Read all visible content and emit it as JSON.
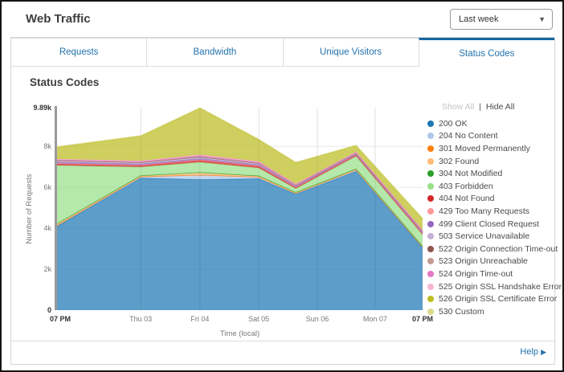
{
  "header": {
    "title": "Web Traffic",
    "range_dropdown": {
      "value": "Last week",
      "caret": "▼"
    }
  },
  "tabs": [
    {
      "label": "Requests",
      "active": false
    },
    {
      "label": "Bandwidth",
      "active": false
    },
    {
      "label": "Unique Visitors",
      "active": false
    },
    {
      "label": "Status Codes",
      "active": true
    }
  ],
  "panel": {
    "title": "Status Codes"
  },
  "legend": {
    "show_all_label": "Show All",
    "separator": "|",
    "hide_all_label": "Hide All"
  },
  "footer": {
    "help_label": "Help",
    "help_arrow": "▶"
  },
  "colors": {
    "accent_blue": "#17689f",
    "tab_text": "#2272ae",
    "axis_gray": "#999999"
  },
  "chart_data": {
    "type": "area",
    "stacked": true,
    "title": "Status Codes",
    "xlabel": "Time (local)",
    "ylabel": "Number of Requests",
    "ylim": [
      0,
      9890
    ],
    "grid": true,
    "legend_position": "right",
    "y_ticks": [
      {
        "v": 9890,
        "label": "9.89k",
        "strong": true
      },
      {
        "v": 8000,
        "label": "8k",
        "strong": false
      },
      {
        "v": 6000,
        "label": "6k",
        "strong": false
      },
      {
        "v": 4000,
        "label": "4k",
        "strong": false
      },
      {
        "v": 2000,
        "label": "2k",
        "strong": false
      },
      {
        "v": 0,
        "label": "0",
        "strong": true
      }
    ],
    "x_ticks": [
      {
        "pos": 0.0,
        "label": "07 PM",
        "strong": true
      },
      {
        "pos": 0.229,
        "label": "Thu 03",
        "strong": false
      },
      {
        "pos": 0.391,
        "label": "Fri 04",
        "strong": false
      },
      {
        "pos": 0.552,
        "label": "Sat 05",
        "strong": false
      },
      {
        "pos": 0.712,
        "label": "Sun 06",
        "strong": false
      },
      {
        "pos": 0.87,
        "label": "Mon 07",
        "strong": false
      },
      {
        "pos": 1.0,
        "label": "07 PM",
        "strong": true
      }
    ],
    "x_points": [
      0.0,
      0.229,
      0.391,
      0.552,
      0.653,
      0.818,
      1.0
    ],
    "series": [
      {
        "code": "200",
        "name": "200 OK",
        "color": "#1f77b4",
        "values": [
          4100,
          6450,
          6380,
          6420,
          5660,
          6780,
          3050
        ]
      },
      {
        "code": "204",
        "name": "204 No Content",
        "color": "#aec7e8",
        "values": [
          30,
          60,
          210,
          70,
          40,
          60,
          30
        ]
      },
      {
        "code": "301",
        "name": "301 Moved Permanently",
        "color": "#ff7f0e",
        "values": [
          10,
          10,
          15,
          10,
          10,
          10,
          10
        ]
      },
      {
        "code": "302",
        "name": "302 Found",
        "color": "#ffbb78",
        "values": [
          70,
          40,
          110,
          50,
          30,
          40,
          25
        ]
      },
      {
        "code": "304",
        "name": "304 Not Modified",
        "color": "#2ca02c",
        "values": [
          10,
          10,
          10,
          10,
          10,
          10,
          10
        ]
      },
      {
        "code": "403",
        "name": "403 Forbidden",
        "color": "#98df8a",
        "values": [
          2850,
          420,
          500,
          380,
          190,
          620,
          560
        ]
      },
      {
        "code": "404",
        "name": "404 Not Found",
        "color": "#d62728",
        "values": [
          70,
          70,
          90,
          80,
          50,
          60,
          55
        ]
      },
      {
        "code": "429",
        "name": "429 Too Many Requests",
        "color": "#ff9896",
        "values": [
          25,
          25,
          30,
          25,
          20,
          15,
          20
        ]
      },
      {
        "code": "499",
        "name": "499 Client Closed Request",
        "color": "#9467bd",
        "values": [
          60,
          55,
          60,
          55,
          40,
          35,
          40
        ]
      },
      {
        "code": "503",
        "name": "503 Service Unavailable",
        "color": "#c5b0d5",
        "values": [
          60,
          55,
          60,
          55,
          40,
          35,
          40
        ]
      },
      {
        "code": "522",
        "name": "522 Origin Connection Time-out",
        "color": "#8c564b",
        "values": [
          15,
          15,
          20,
          15,
          10,
          10,
          10
        ]
      },
      {
        "code": "523",
        "name": "523 Origin Unreachable",
        "color": "#c49c94",
        "values": [
          15,
          15,
          20,
          15,
          10,
          10,
          10
        ]
      },
      {
        "code": "524",
        "name": "524 Origin Time-out",
        "color": "#e377c2",
        "values": [
          35,
          35,
          45,
          40,
          30,
          25,
          30
        ]
      },
      {
        "code": "525",
        "name": "525 Origin SSL Handshake Error",
        "color": "#f7b6d2",
        "values": [
          35,
          35,
          45,
          40,
          30,
          25,
          30
        ]
      },
      {
        "code": "526",
        "name": "526 Origin SSL Certificate Error",
        "color": "#bcbd22",
        "values": [
          570,
          1200,
          2260,
          1050,
          1030,
          300,
          540
        ]
      },
      {
        "code": "530",
        "name": "530 Custom",
        "color": "#dbdb8d",
        "values": [
          30,
          30,
          35,
          30,
          25,
          25,
          25
        ]
      }
    ]
  }
}
